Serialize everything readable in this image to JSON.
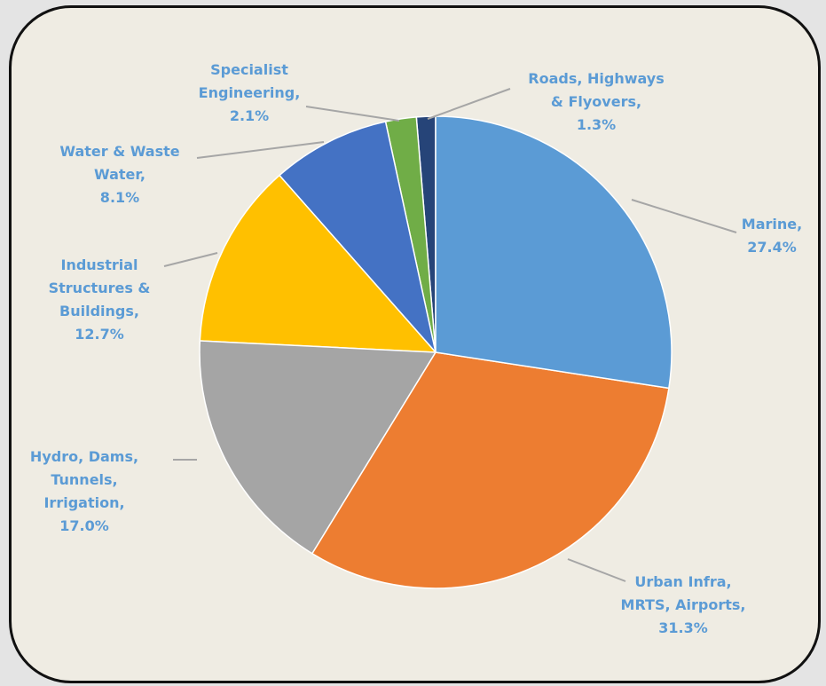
{
  "chart_data": {
    "type": "pie",
    "categories": [
      "Marine,",
      "Urban Infra,\nMRTS, Airports,",
      "Hydro, Dams,\nTunnels,\nIrrigation,",
      "Industrial\nStructures &\nBuildings,",
      "Water & Waste\nWater,",
      "Specialist\nEngineering,",
      "Roads, Highways\n& Flyovers,"
    ],
    "values": [
      27.4,
      31.3,
      17.0,
      12.7,
      8.1,
      2.1,
      1.3
    ],
    "value_labels": [
      "27.4%",
      "31.3%",
      "17.0%",
      "12.7%",
      "8.1%",
      "2.1%",
      "1.3%"
    ],
    "colors": [
      "#5b9bd5",
      "#ed7d31",
      "#a5a5a5",
      "#ffc000",
      "#4472c4",
      "#70ad47",
      "#264478"
    ]
  }
}
